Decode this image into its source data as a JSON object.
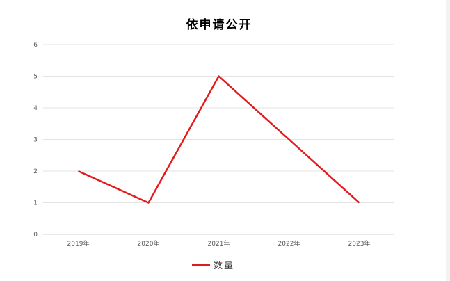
{
  "chart_data": {
    "type": "line",
    "title": "依申请公开",
    "categories": [
      "2019年",
      "2020年",
      "2021年",
      "2022年",
      "2023年"
    ],
    "series": [
      {
        "name": "数量",
        "values": [
          2,
          1,
          5,
          3,
          1
        ],
        "color": "#e31a1c"
      }
    ],
    "ylim": [
      0,
      6
    ],
    "yticks": [
      0,
      1,
      2,
      3,
      4,
      5,
      6
    ],
    "grid": true,
    "legend": "bottom"
  }
}
